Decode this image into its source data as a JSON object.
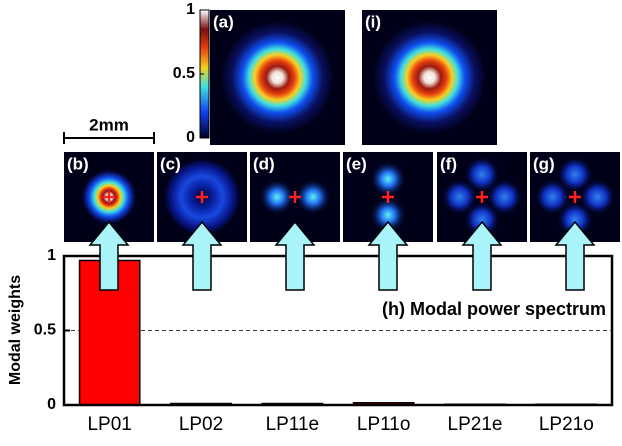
{
  "chart_data": {
    "type": "bar",
    "annotation": "(h) Modal power spectrum",
    "y_label": "Modal weights",
    "categories": [
      "LP01",
      "LP02",
      "LP11e",
      "LP11o",
      "LP21e",
      "LP21o"
    ],
    "values": [
      0.97,
      0.01,
      0.01,
      0.015,
      0.005,
      0.005
    ],
    "color": "#ff0000",
    "ylim": [
      0,
      1
    ],
    "yticks": [
      0,
      0.5,
      1
    ],
    "grid": true
  },
  "figure": {
    "scale_bar": "2mm",
    "colorbar": {
      "ticks": [
        1,
        0.5,
        0
      ],
      "range": [
        0,
        1
      ]
    },
    "top_panels": [
      {
        "label": "(a)",
        "mode": "spot"
      },
      {
        "label": "(i)",
        "mode": "spot"
      }
    ],
    "mode_panels": [
      {
        "label": "(b)",
        "mode": "spot"
      },
      {
        "label": "(c)",
        "mode": "ring"
      },
      {
        "label": "(d)",
        "mode": "h2"
      },
      {
        "label": "(e)",
        "mode": "v2"
      },
      {
        "label": "(f)",
        "mode": "x4"
      },
      {
        "label": "(g)",
        "mode": "x4"
      }
    ]
  }
}
